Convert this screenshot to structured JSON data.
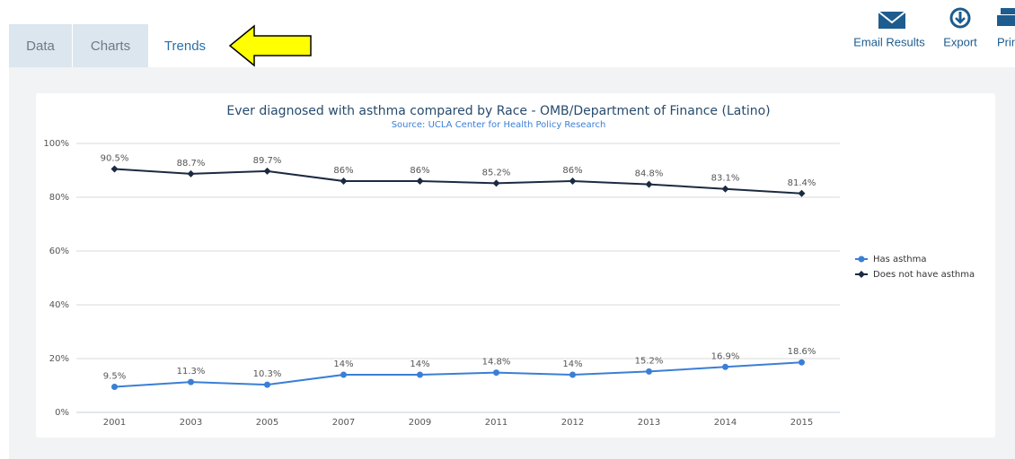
{
  "tabs": [
    "Data",
    "Charts",
    "Trends"
  ],
  "toolbar": [
    "Email Results",
    "Export",
    "Print"
  ],
  "chart_data": {
    "type": "line",
    "title": "Ever diagnosed with asthma compared by Race - OMB/Department of Finance (Latino)",
    "subtitle": "Source: UCLA Center for Health Policy Research",
    "categories": [
      "2001",
      "2003",
      "2005",
      "2007",
      "2009",
      "2011",
      "2012",
      "2013",
      "2014",
      "2015"
    ],
    "series": [
      {
        "name": "Has asthma",
        "color": "#3a7fd5",
        "marker": "circle",
        "values": [
          9.5,
          11.3,
          10.3,
          14,
          14,
          14.8,
          14,
          15.2,
          16.9,
          18.6
        ],
        "value_labels": [
          "9.5%",
          "11.3%",
          "10.3%",
          "14%",
          "14%",
          "14.8%",
          "14%",
          "15.2%",
          "16.9%",
          "18.6%"
        ]
      },
      {
        "name": "Does not have asthma",
        "color": "#1b2a41",
        "marker": "diamond",
        "values": [
          90.5,
          88.7,
          89.7,
          86,
          86,
          85.2,
          86,
          84.8,
          83.1,
          81.4
        ],
        "value_labels": [
          "90.5%",
          "88.7%",
          "89.7%",
          "86%",
          "86%",
          "85.2%",
          "86%",
          "84.8%",
          "83.1%",
          "81.4%"
        ]
      }
    ],
    "ylim": [
      0,
      100
    ],
    "yticks": [
      {
        "value": 0,
        "label": "0%"
      },
      {
        "value": 20,
        "label": "20%"
      },
      {
        "value": 40,
        "label": "40%"
      },
      {
        "value": 60,
        "label": "60%"
      },
      {
        "value": 80,
        "label": "80%"
      },
      {
        "value": 100,
        "label": "100%"
      }
    ],
    "grid": true,
    "legend": "right"
  }
}
